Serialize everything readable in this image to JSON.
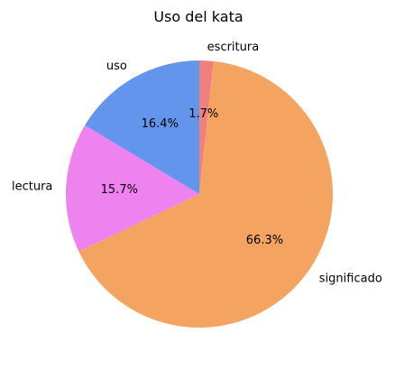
{
  "chart_data": {
    "type": "pie",
    "title": "Uso del kata",
    "start_angle_deg": 90,
    "direction": "clockwise",
    "slices": [
      {
        "label": "escritura",
        "value": 1.7,
        "pct_label": "1.7%",
        "color": "#f08080"
      },
      {
        "label": "significado",
        "value": 66.3,
        "pct_label": "66.3%",
        "color": "#f4a460"
      },
      {
        "label": "lectura",
        "value": 15.7,
        "pct_label": "15.7%",
        "color": "#ee82ee"
      },
      {
        "label": "uso",
        "value": 16.4,
        "pct_label": "16.4%",
        "color": "#6495ed"
      }
    ]
  }
}
